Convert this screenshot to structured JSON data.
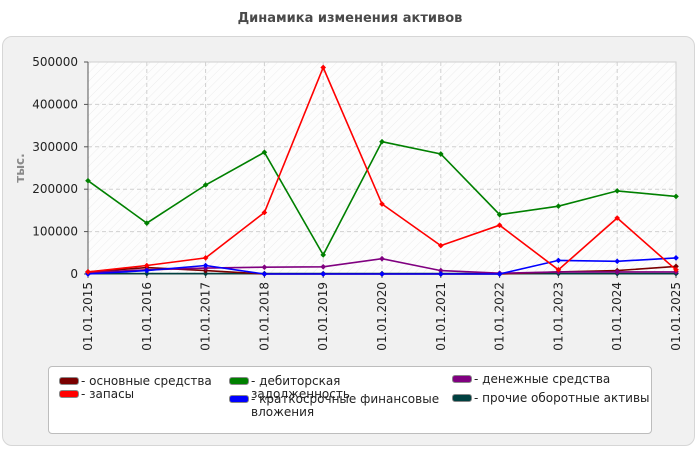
{
  "chart_data": {
    "type": "line",
    "title": "Динамика изменения активов",
    "ylabel": "тыс.",
    "xlabel": "",
    "x": [
      "01.01.2015",
      "01.01.2016",
      "01.01.2017",
      "01.01.2018",
      "01.01.2019",
      "01.01.2020",
      "01.01.2021",
      "01.01.2022",
      "01.01.2023",
      "01.01.2024",
      "01.01.2025"
    ],
    "y_ticks": [
      "0",
      "100000",
      "200000",
      "300000",
      "400000",
      "500000"
    ],
    "ylim": [
      0,
      500000
    ],
    "grid": true,
    "legend_position": "bottom",
    "series": [
      {
        "name": "- основные средства",
        "color": "#7a0000",
        "values": [
          5000,
          15000,
          8000,
          0,
          0,
          0,
          0,
          0,
          5000,
          8000,
          18000
        ]
      },
      {
        "name": "- запасы",
        "color": "#ff0000",
        "values": [
          5000,
          20000,
          38000,
          145000,
          487000,
          165000,
          67000,
          115000,
          10000,
          132000,
          10000
        ]
      },
      {
        "name": "- дебиторская задолженность",
        "color": "#008000",
        "values": [
          220000,
          120000,
          210000,
          287000,
          45000,
          312000,
          283000,
          140000,
          160000,
          196000,
          183000
        ]
      },
      {
        "name": "- краткосрочные финансовые вложения",
        "color": "#0000ff",
        "values": [
          0,
          8000,
          20000,
          0,
          0,
          0,
          0,
          0,
          32000,
          30000,
          38000
        ]
      },
      {
        "name": "- денежные средства",
        "color": "#800080",
        "values": [
          3000,
          10000,
          14000,
          16000,
          17000,
          36000,
          8000,
          2000,
          5000,
          5000,
          5000
        ]
      },
      {
        "name": "- прочие оборотные активы",
        "color": "#004040",
        "values": [
          1000,
          1000,
          1000,
          1000,
          1000,
          1000,
          1000,
          1000,
          1000,
          1000,
          1000
        ]
      }
    ]
  }
}
